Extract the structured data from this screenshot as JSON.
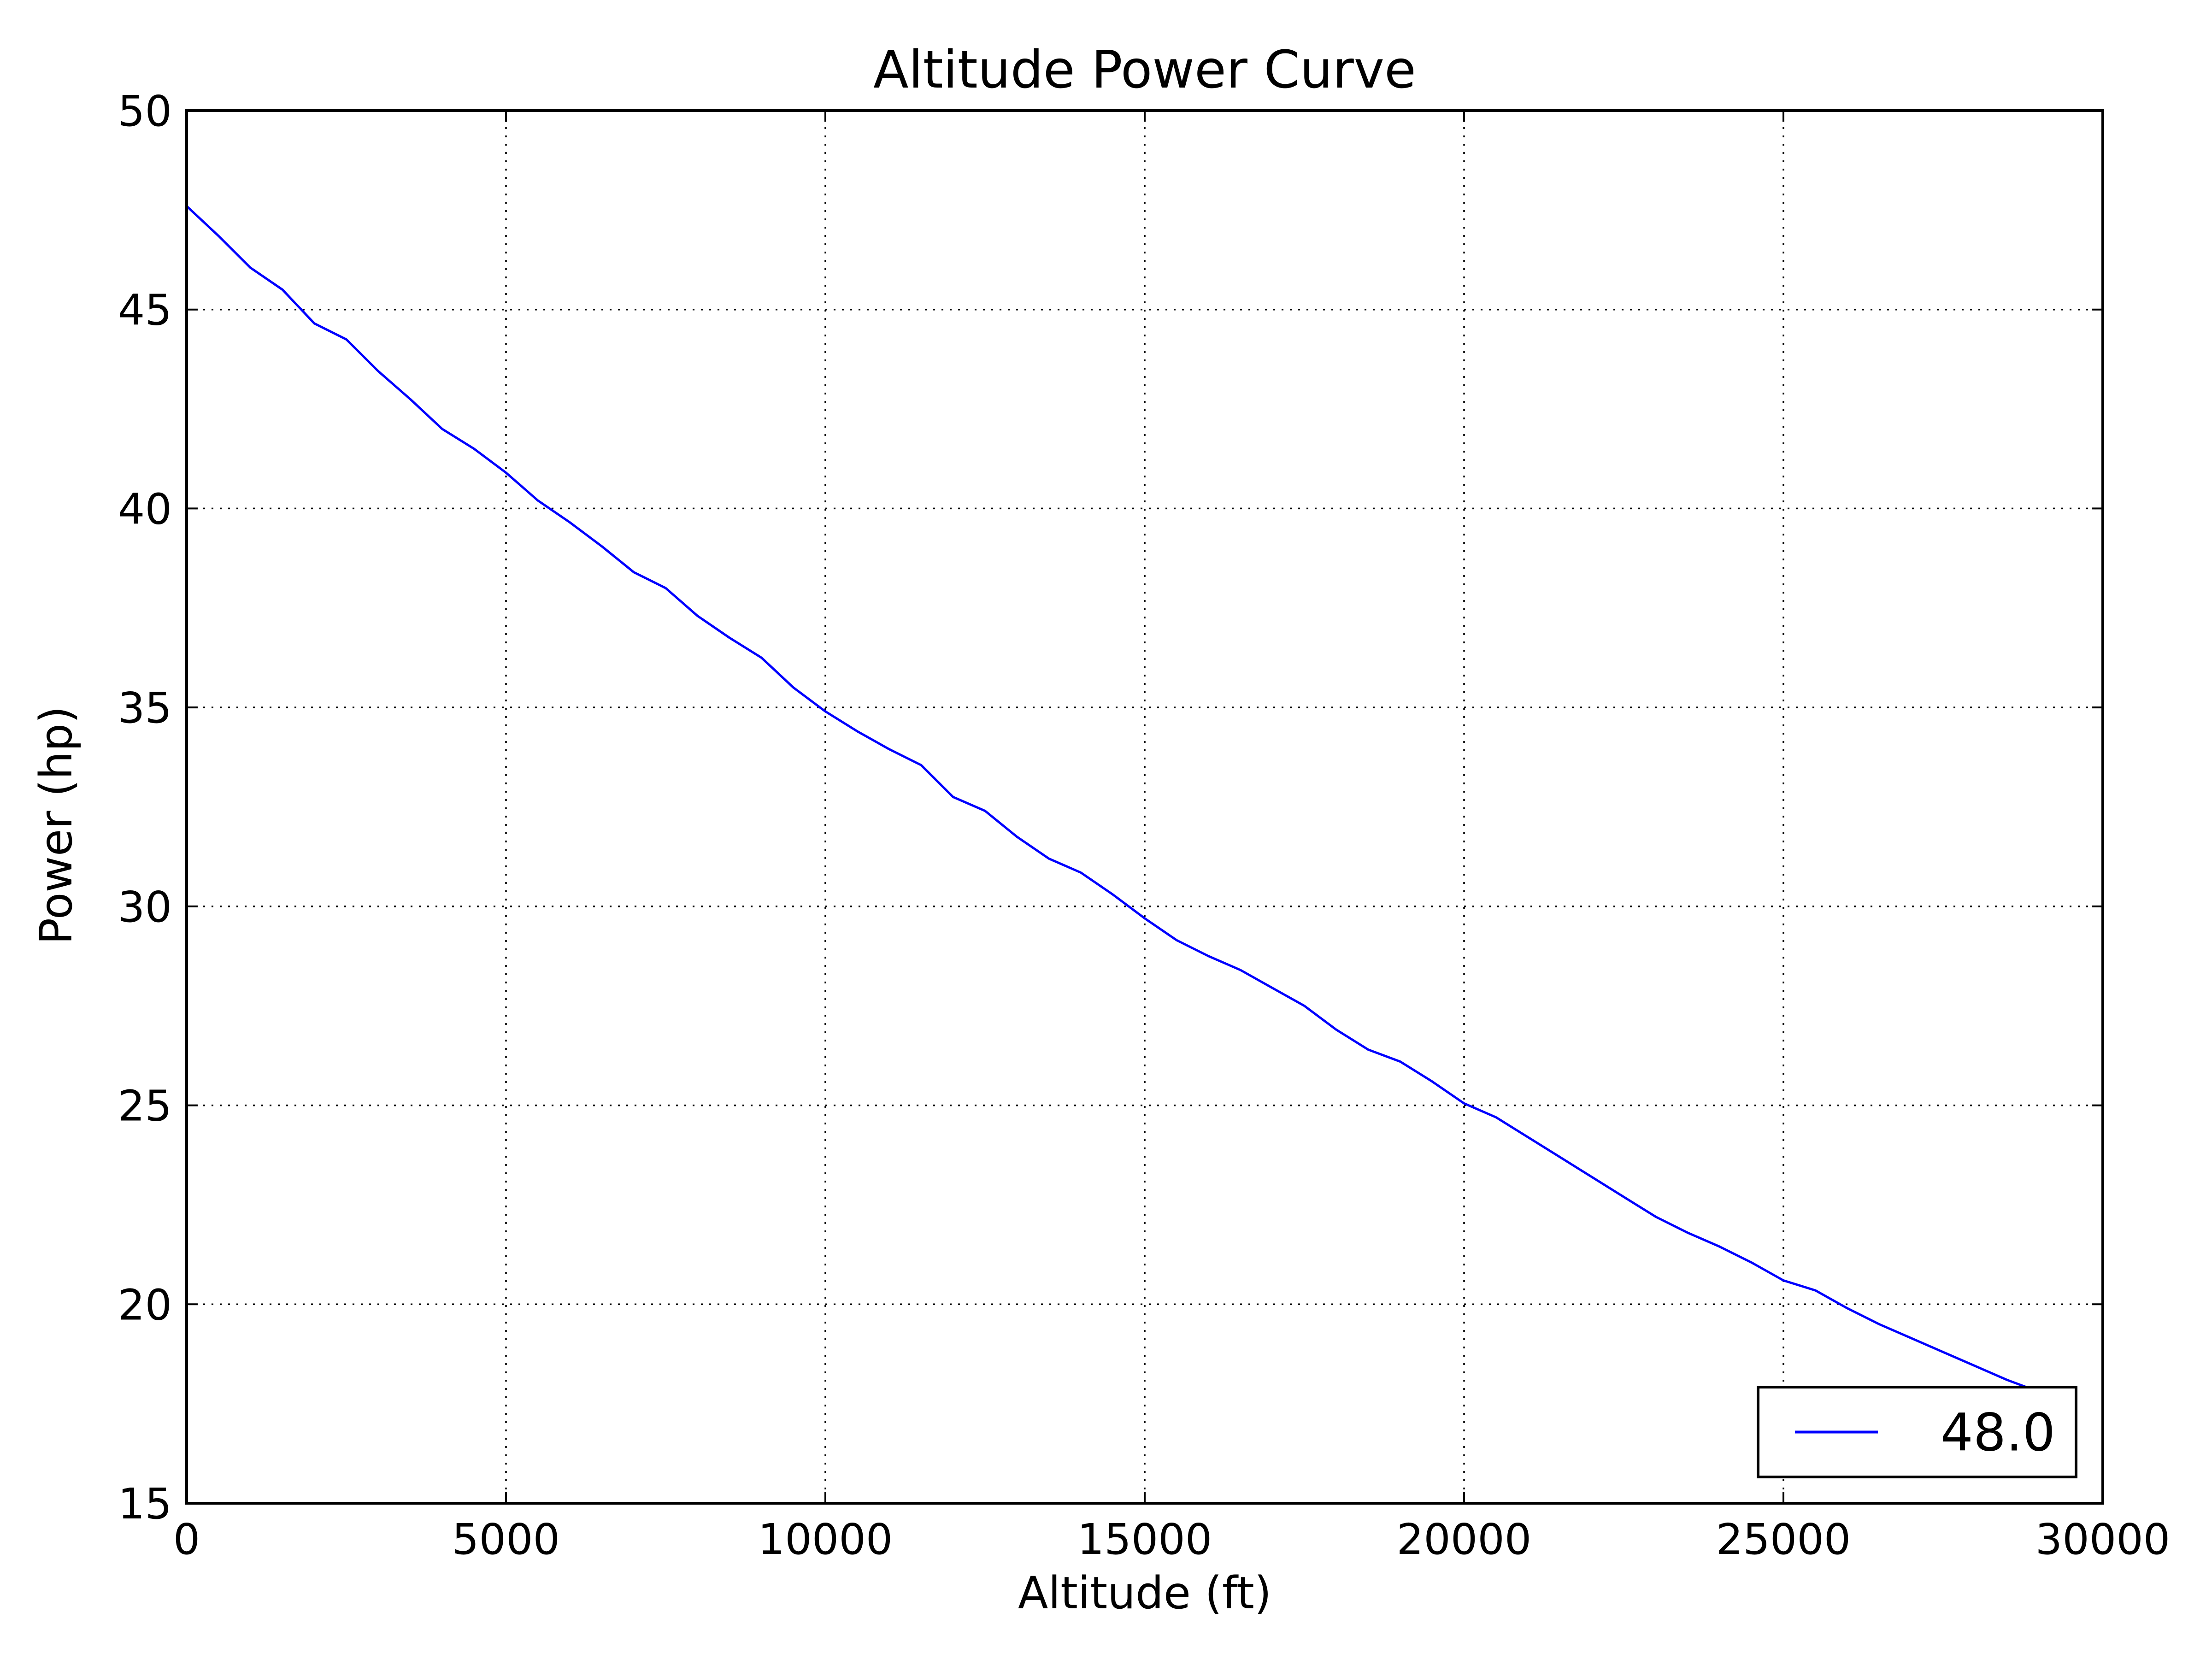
{
  "chart_data": {
    "type": "line",
    "title": "Altitude Power Curve",
    "xlabel": "Altitude (ft)",
    "ylabel": "Power (hp)",
    "xlim": [
      0,
      30000
    ],
    "ylim": [
      15,
      50
    ],
    "xticks": [
      0,
      5000,
      10000,
      15000,
      20000,
      25000,
      30000
    ],
    "xtick_labels": [
      "0",
      "5000",
      "10000",
      "15000",
      "20000",
      "25000",
      "30000"
    ],
    "yticks": [
      15,
      20,
      25,
      30,
      35,
      40,
      45,
      50
    ],
    "ytick_labels": [
      "15",
      "20",
      "25",
      "30",
      "35",
      "40",
      "45",
      "50"
    ],
    "grid": true,
    "legend_position": "lower-right",
    "series": [
      {
        "name": "48.0",
        "color": "#0000ff",
        "x": [
          0,
          500,
          1000,
          1500,
          2000,
          2500,
          3000,
          3500,
          4000,
          4500,
          5000,
          5500,
          6000,
          6500,
          7000,
          7500,
          8000,
          8500,
          9000,
          9500,
          10000,
          10500,
          11000,
          11500,
          12000,
          12500,
          13000,
          13500,
          14000,
          14500,
          15000,
          15500,
          16000,
          16500,
          17000,
          17500,
          18000,
          18500,
          19000,
          19500,
          20000,
          20500,
          21000,
          21500,
          22000,
          22500,
          23000,
          23500,
          24000,
          24500,
          25000,
          25500,
          26000,
          26500,
          27000,
          27500,
          28000,
          28500,
          29000,
          29500
        ],
        "y": [
          47.6,
          46.85,
          46.05,
          45.5,
          44.65,
          44.25,
          43.45,
          42.75,
          42.0,
          41.5,
          40.9,
          40.2,
          39.65,
          39.05,
          38.4,
          38.0,
          37.3,
          36.75,
          36.25,
          35.5,
          34.9,
          34.4,
          33.95,
          33.55,
          32.75,
          32.4,
          31.75,
          31.2,
          30.85,
          30.3,
          29.7,
          29.15,
          28.75,
          28.4,
          27.95,
          27.5,
          26.9,
          26.4,
          26.1,
          25.6,
          25.05,
          24.7,
          24.2,
          23.7,
          23.2,
          22.7,
          22.2,
          21.8,
          21.45,
          21.05,
          20.6,
          20.35,
          19.9,
          19.5,
          19.15,
          18.8,
          18.45,
          18.1,
          17.8,
          17.55
        ]
      }
    ]
  }
}
